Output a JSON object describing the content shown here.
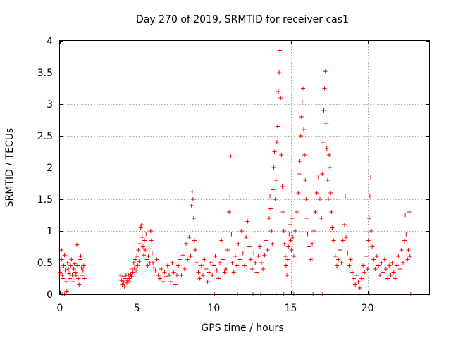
{
  "chart_data": {
    "type": "scatter",
    "title": "Day 270 of 2019, SRMTID for receiver cas1",
    "xlabel": "GPS time / hours",
    "ylabel": "SRMTID / TECUs",
    "xlim": [
      0,
      24
    ],
    "ylim": [
      0,
      4
    ],
    "xticks": [
      0,
      5,
      10,
      15,
      20
    ],
    "xtick_labels": [
      "0",
      "5",
      "10",
      "15",
      "20"
    ],
    "yticks": [
      0,
      0.5,
      1,
      1.5,
      2,
      2.5,
      3,
      3.5,
      4
    ],
    "ytick_labels": [
      "0",
      "0.5",
      "1",
      "1.5",
      "2",
      "2.5",
      "3",
      "3.5",
      "4"
    ],
    "grid": true,
    "marker": "+",
    "color": "#ff0000",
    "series": [
      {
        "name": "cas1",
        "points": [
          [
            0.0,
            0.35
          ],
          [
            0.05,
            0.42
          ],
          [
            0.1,
            0.7
          ],
          [
            0.12,
            0.55
          ],
          [
            0.15,
            0.3
          ],
          [
            0.2,
            0.25
          ],
          [
            0.25,
            0.45
          ],
          [
            0.3,
            0.62
          ],
          [
            0.35,
            0.38
          ],
          [
            0.4,
            0.2
          ],
          [
            0.45,
            0.05
          ],
          [
            0.5,
            0.5
          ],
          [
            0.55,
            0.4
          ],
          [
            0.6,
            0.33
          ],
          [
            0.65,
            0.25
          ],
          [
            0.7,
            0.45
          ],
          [
            0.75,
            0.55
          ],
          [
            0.8,
            0.3
          ],
          [
            0.85,
            0.2
          ],
          [
            0.9,
            0.4
          ],
          [
            0.95,
            0.48
          ],
          [
            1.0,
            0.35
          ],
          [
            1.05,
            0.3
          ],
          [
            1.1,
            0.78
          ],
          [
            1.15,
            0.45
          ],
          [
            1.2,
            0.25
          ],
          [
            1.25,
            0.15
          ],
          [
            1.3,
            0.55
          ],
          [
            1.35,
            0.6
          ],
          [
            1.4,
            0.42
          ],
          [
            1.45,
            0.3
          ],
          [
            1.5,
            0.38
          ],
          [
            1.55,
            0.45
          ],
          [
            1.6,
            0.25
          ],
          [
            0.15,
            0.0
          ],
          [
            0.3,
            0.0
          ],
          [
            3.95,
            0.3
          ],
          [
            4.0,
            0.22
          ],
          [
            4.05,
            0.15
          ],
          [
            4.1,
            0.28
          ],
          [
            4.15,
            0.2
          ],
          [
            4.2,
            0.12
          ],
          [
            4.25,
            0.25
          ],
          [
            4.3,
            0.3
          ],
          [
            4.35,
            0.18
          ],
          [
            4.4,
            0.22
          ],
          [
            4.45,
            0.3
          ],
          [
            4.5,
            0.25
          ],
          [
            4.55,
            0.2
          ],
          [
            4.6,
            0.32
          ],
          [
            4.65,
            0.28
          ],
          [
            4.7,
            0.4
          ],
          [
            4.75,
            0.35
          ],
          [
            4.8,
            0.5
          ],
          [
            4.85,
            0.42
          ],
          [
            4.9,
            0.55
          ],
          [
            4.95,
            0.38
          ],
          [
            5.0,
            0.6
          ],
          [
            5.05,
            0.45
          ],
          [
            5.1,
            0.7
          ],
          [
            5.15,
            0.52
          ],
          [
            5.2,
            0.8
          ],
          [
            5.25,
            1.05
          ],
          [
            5.3,
            1.1
          ],
          [
            5.35,
            0.9
          ],
          [
            5.4,
            0.75
          ],
          [
            5.45,
            0.62
          ],
          [
            5.5,
            0.85
          ],
          [
            5.55,
            0.7
          ],
          [
            5.6,
            0.95
          ],
          [
            5.65,
            0.55
          ],
          [
            5.7,
            0.45
          ],
          [
            5.75,
            0.6
          ],
          [
            5.8,
            0.72
          ],
          [
            5.85,
            0.5
          ],
          [
            5.9,
            1.0
          ],
          [
            5.95,
            0.85
          ],
          [
            6.0,
            0.65
          ],
          [
            6.05,
            0.5
          ],
          [
            6.1,
            0.42
          ],
          [
            6.2,
            0.38
          ],
          [
            6.3,
            0.55
          ],
          [
            6.4,
            0.3
          ],
          [
            6.5,
            0.25
          ],
          [
            6.6,
            0.4
          ],
          [
            6.7,
            0.2
          ],
          [
            6.8,
            0.35
          ],
          [
            6.9,
            0.28
          ],
          [
            7.0,
            0.45
          ],
          [
            7.1,
            0.3
          ],
          [
            7.2,
            0.2
          ],
          [
            7.3,
            0.5
          ],
          [
            7.4,
            0.35
          ],
          [
            7.5,
            0.15
          ],
          [
            7.6,
            0.3
          ],
          [
            7.7,
            0.45
          ],
          [
            7.8,
            0.55
          ],
          [
            7.9,
            0.3
          ],
          [
            8.0,
            0.62
          ],
          [
            8.1,
            0.4
          ],
          [
            8.2,
            0.8
          ],
          [
            8.3,
            0.55
          ],
          [
            8.4,
            0.9
          ],
          [
            8.5,
            0.6
          ],
          [
            8.55,
            1.4
          ],
          [
            8.6,
            1.62
          ],
          [
            8.65,
            1.5
          ],
          [
            8.7,
            1.2
          ],
          [
            8.75,
            0.85
          ],
          [
            8.8,
            0.7
          ],
          [
            8.9,
            0.5
          ],
          [
            9.0,
            0.35
          ],
          [
            9.1,
            0.25
          ],
          [
            9.2,
            0.45
          ],
          [
            9.3,
            0.3
          ],
          [
            9.4,
            0.55
          ],
          [
            9.5,
            0.4
          ],
          [
            9.6,
            0.2
          ],
          [
            9.7,
            0.35
          ],
          [
            9.8,
            0.5
          ],
          [
            9.9,
            0.3
          ],
          [
            10.0,
            0.45
          ],
          [
            10.1,
            0.6
          ],
          [
            10.2,
            0.38
          ],
          [
            10.3,
            0.25
          ],
          [
            10.4,
            0.5
          ],
          [
            10.5,
            0.85
          ],
          [
            10.6,
            0.55
          ],
          [
            10.7,
            0.35
          ],
          [
            10.8,
            0.4
          ],
          [
            10.9,
            0.7
          ],
          [
            11.0,
            1.3
          ],
          [
            11.05,
            1.55
          ],
          [
            11.1,
            2.18
          ],
          [
            11.15,
            0.95
          ],
          [
            11.2,
            0.5
          ],
          [
            11.3,
            0.35
          ],
          [
            11.4,
            0.6
          ],
          [
            11.5,
            0.45
          ],
          [
            11.6,
            0.8
          ],
          [
            11.7,
            0.55
          ],
          [
            11.8,
            1.0
          ],
          [
            11.9,
            0.65
          ],
          [
            12.0,
            0.45
          ],
          [
            12.1,
            0.9
          ],
          [
            12.2,
            1.15
          ],
          [
            12.3,
            0.75
          ],
          [
            12.4,
            0.55
          ],
          [
            12.5,
            0.4
          ],
          [
            12.6,
            0.65
          ],
          [
            12.7,
            0.5
          ],
          [
            12.8,
            0.35
          ],
          [
            12.9,
            0.6
          ],
          [
            13.0,
            0.75
          ],
          [
            13.1,
            0.5
          ],
          [
            13.2,
            0.4
          ],
          [
            13.3,
            0.62
          ],
          [
            13.4,
            0.85
          ],
          [
            13.5,
            0.7
          ],
          [
            13.6,
            1.2
          ],
          [
            13.65,
            1.55
          ],
          [
            13.7,
            1.35
          ],
          [
            13.75,
            1.0
          ],
          [
            13.8,
            0.8
          ],
          [
            13.85,
            1.65
          ],
          [
            13.9,
            2.0
          ],
          [
            13.95,
            2.25
          ],
          [
            14.0,
            1.5
          ],
          [
            14.05,
            1.8
          ],
          [
            14.1,
            2.4
          ],
          [
            14.15,
            2.65
          ],
          [
            14.2,
            3.2
          ],
          [
            14.25,
            3.5
          ],
          [
            14.3,
            3.85
          ],
          [
            14.35,
            3.1
          ],
          [
            14.4,
            2.2
          ],
          [
            14.45,
            1.7
          ],
          [
            14.5,
            1.3
          ],
          [
            14.55,
            1.0
          ],
          [
            14.6,
            0.8
          ],
          [
            14.65,
            0.6
          ],
          [
            14.7,
            0.45
          ],
          [
            14.75,
            0.3
          ],
          [
            14.8,
            0.55
          ],
          [
            14.85,
            0.75
          ],
          [
            14.9,
            0.95
          ],
          [
            14.95,
            1.1
          ],
          [
            15.0,
            0.85
          ],
          [
            15.05,
            0.7
          ],
          [
            15.1,
            1.2
          ],
          [
            15.15,
            0.9
          ],
          [
            15.2,
            0.6
          ],
          [
            15.3,
            1.0
          ],
          [
            15.4,
            1.3
          ],
          [
            15.5,
            1.6
          ],
          [
            15.55,
            1.9
          ],
          [
            15.6,
            2.1
          ],
          [
            15.65,
            2.5
          ],
          [
            15.7,
            2.8
          ],
          [
            15.75,
            3.05
          ],
          [
            15.8,
            3.25
          ],
          [
            15.85,
            2.6
          ],
          [
            15.9,
            2.2
          ],
          [
            15.95,
            1.8
          ],
          [
            16.0,
            1.5
          ],
          [
            16.05,
            1.2
          ],
          [
            16.1,
            0.95
          ],
          [
            16.2,
            0.75
          ],
          [
            16.3,
            0.55
          ],
          [
            16.4,
            0.8
          ],
          [
            16.5,
            1.0
          ],
          [
            16.6,
            1.3
          ],
          [
            16.7,
            1.6
          ],
          [
            16.8,
            1.85
          ],
          [
            16.9,
            1.5
          ],
          [
            17.0,
            1.2
          ],
          [
            17.05,
            1.9
          ],
          [
            17.1,
            2.4
          ],
          [
            17.15,
            2.9
          ],
          [
            17.2,
            3.25
          ],
          [
            17.25,
            3.52
          ],
          [
            17.3,
            2.7
          ],
          [
            17.35,
            2.3
          ],
          [
            17.4,
            1.8
          ],
          [
            17.45,
            1.5
          ],
          [
            17.5,
            2.2
          ],
          [
            17.55,
            2.0
          ],
          [
            17.6,
            1.6
          ],
          [
            17.65,
            1.3
          ],
          [
            17.7,
            1.05
          ],
          [
            17.8,
            0.85
          ],
          [
            17.9,
            0.6
          ],
          [
            18.0,
            0.45
          ],
          [
            18.1,
            0.55
          ],
          [
            18.2,
            0.7
          ],
          [
            18.3,
            0.5
          ],
          [
            18.4,
            0.85
          ],
          [
            18.5,
            1.1
          ],
          [
            18.55,
            1.55
          ],
          [
            18.6,
            0.9
          ],
          [
            18.7,
            0.65
          ],
          [
            18.8,
            0.45
          ],
          [
            18.9,
            0.55
          ],
          [
            19.0,
            0.35
          ],
          [
            19.1,
            0.25
          ],
          [
            19.2,
            0.15
          ],
          [
            19.3,
            0.3
          ],
          [
            19.4,
            0.2
          ],
          [
            19.5,
            0.1
          ],
          [
            19.6,
            0.25
          ],
          [
            19.7,
            0.45
          ],
          [
            19.8,
            0.35
          ],
          [
            19.9,
            0.6
          ],
          [
            20.0,
            0.4
          ],
          [
            20.05,
            0.85
          ],
          [
            20.1,
            1.2
          ],
          [
            20.15,
            1.55
          ],
          [
            20.2,
            1.85
          ],
          [
            20.25,
            1.0
          ],
          [
            20.3,
            0.75
          ],
          [
            20.4,
            0.55
          ],
          [
            20.5,
            0.4
          ],
          [
            20.6,
            0.6
          ],
          [
            20.7,
            0.45
          ],
          [
            20.8,
            0.3
          ],
          [
            20.9,
            0.5
          ],
          [
            21.0,
            0.35
          ],
          [
            21.1,
            0.55
          ],
          [
            21.2,
            0.4
          ],
          [
            21.3,
            0.25
          ],
          [
            21.4,
            0.45
          ],
          [
            21.5,
            0.3
          ],
          [
            21.6,
            0.5
          ],
          [
            21.7,
            0.35
          ],
          [
            21.8,
            0.25
          ],
          [
            21.9,
            0.45
          ],
          [
            22.0,
            0.6
          ],
          [
            22.1,
            0.4
          ],
          [
            22.2,
            0.7
          ],
          [
            22.3,
            0.5
          ],
          [
            22.4,
            0.85
          ],
          [
            22.45,
            1.25
          ],
          [
            22.5,
            0.95
          ],
          [
            22.55,
            0.65
          ],
          [
            22.6,
            0.55
          ],
          [
            22.65,
            0.7
          ],
          [
            22.7,
            1.3
          ],
          [
            22.75,
            0.6
          ],
          [
            22.8,
            0.0
          ],
          [
            14.05,
            0.0
          ],
          [
            14.55,
            0.0
          ],
          [
            15.2,
            0.0
          ],
          [
            16.45,
            0.0
          ],
          [
            17.05,
            0.0
          ],
          [
            18.35,
            0.0
          ],
          [
            19.45,
            0.0
          ],
          [
            20.1,
            0.0
          ],
          [
            12.55,
            0.0
          ],
          [
            13.05,
            0.0
          ],
          [
            10.05,
            0.0
          ],
          [
            11.55,
            0.0
          ],
          [
            9.05,
            0.0
          ]
        ]
      }
    ]
  }
}
